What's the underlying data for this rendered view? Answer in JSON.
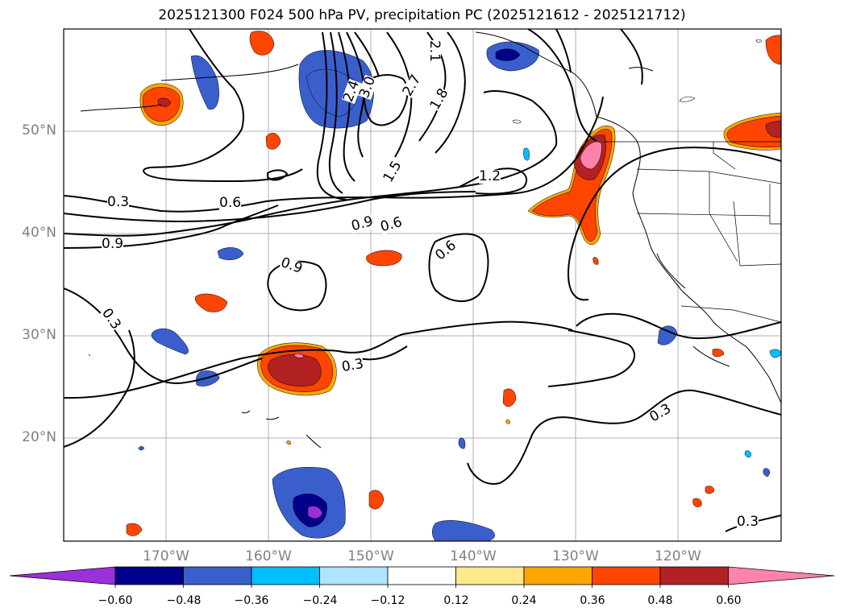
{
  "title": "2025121300 F024 500 hPa PV, precipitation PC (2025121612 - 2025121712)",
  "lat_labels": [
    "50°N",
    "40°N",
    "30°N",
    "20°N"
  ],
  "lon_labels": [
    "170°W",
    "160°W",
    "150°W",
    "140°W",
    "130°W",
    "120°W"
  ],
  "contour_labels": [
    "0.3",
    "0.6",
    "0.9",
    "1.2",
    "1.5",
    "1.8",
    "2.1",
    "2.4",
    "2.7",
    "3.0",
    "0.9",
    "0.6",
    "0.6",
    "0.9",
    "0.3",
    "0.3",
    "0.3",
    "0.3"
  ],
  "colorbar": {
    "labels": [
      "−0.60",
      "−0.48",
      "−0.36",
      "−0.24",
      "−0.12",
      "0.12",
      "0.24",
      "0.36",
      "0.48",
      "0.60"
    ],
    "colors": [
      "#9b30d9",
      "#00008b",
      "#3a5fcd",
      "#00bfff",
      "#aee4ff",
      "#ffffff",
      "#ffe98a",
      "#ffa500",
      "#ff4500",
      "#b22222",
      "#ff82ab"
    ]
  }
}
